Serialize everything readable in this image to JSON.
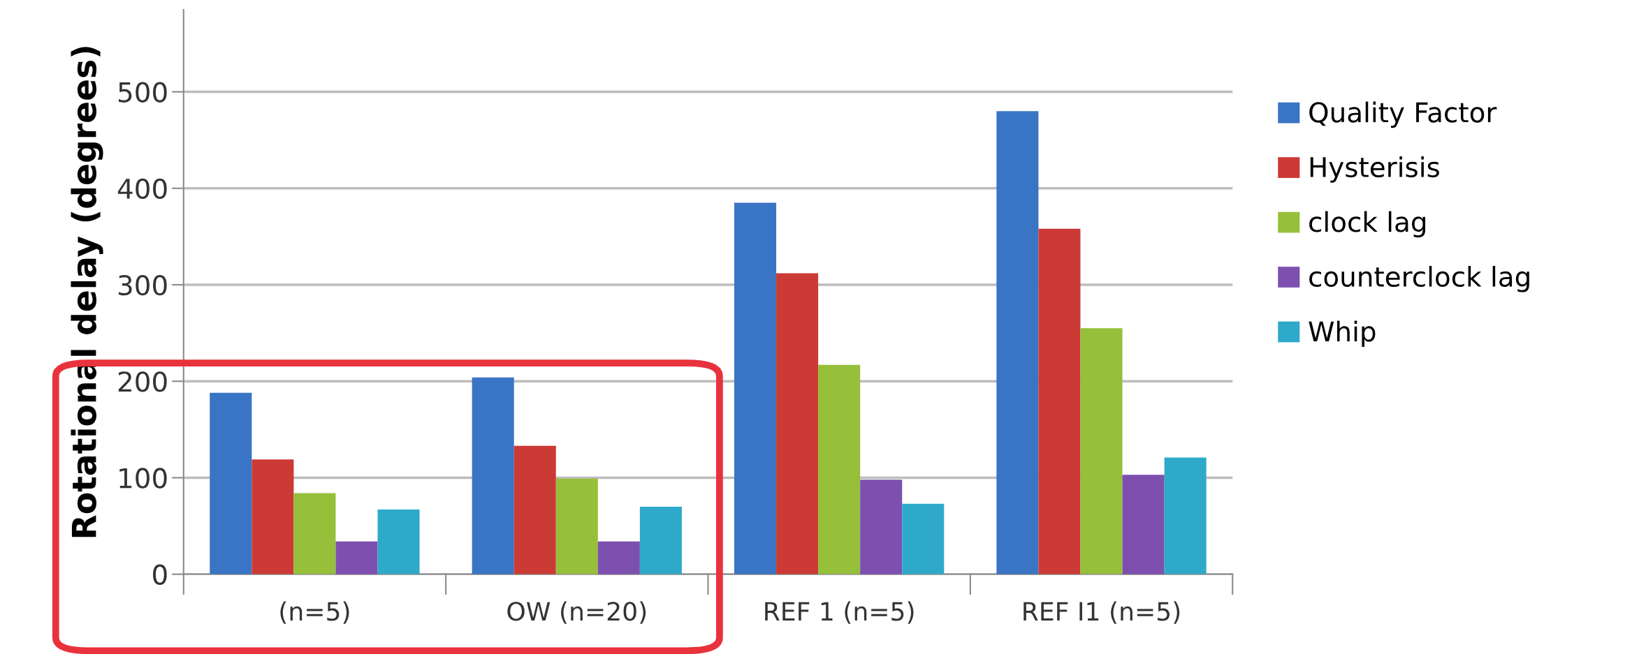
{
  "chart_data": {
    "type": "bar",
    "ylabel": "Rotational delay (degrees)",
    "categories": [
      "(n=5)",
      "OW (n=20)",
      "REF 1 (n=5)",
      "REF I1 (n=5)"
    ],
    "series": [
      {
        "name": "Quality Factor",
        "color": "#3a74c4",
        "values": [
          188,
          204,
          385,
          480
        ]
      },
      {
        "name": "Hysterisis",
        "color": "#cc3a36",
        "values": [
          119,
          133,
          312,
          358
        ]
      },
      {
        "name": "clock lag",
        "color": "#96bf3a",
        "values": [
          84,
          99,
          217,
          255
        ]
      },
      {
        "name": "counterclock lag",
        "color": "#7d50b0",
        "values": [
          34,
          34,
          98,
          103
        ]
      },
      {
        "name": "Whip",
        "color": "#2fa9c9",
        "values": [
          67,
          70,
          73,
          121
        ]
      }
    ],
    "ylim": [
      0,
      585
    ],
    "yticks": [
      0,
      100,
      200,
      300,
      400,
      500
    ],
    "grid": "y",
    "legend": "right"
  }
}
